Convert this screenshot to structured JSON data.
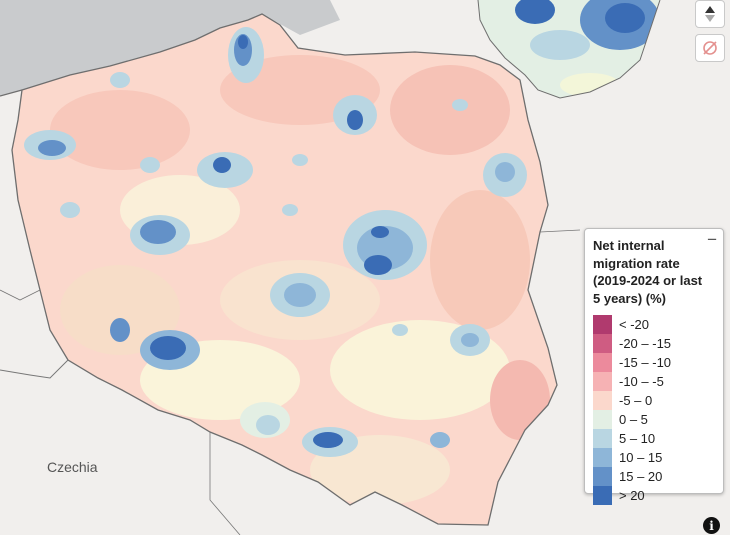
{
  "map": {
    "country_label": "Czechia",
    "colors": {
      "land": "#f1efed",
      "sea": "#c9cbcd",
      "border": "#6e6e6e"
    }
  },
  "legend": {
    "title": "Net internal migration rate (2019-2024 or last 5 years) (%)",
    "close_symbol": "−",
    "classes": [
      {
        "label": "< -20",
        "color": "#b03a6e"
      },
      {
        "label": "-20 – -15",
        "color": "#cf5c82"
      },
      {
        "label": "-15 – -10",
        "color": "#ec8a9c"
      },
      {
        "label": "-10 – -5",
        "color": "#f6b2b4"
      },
      {
        "label": "-5 – 0",
        "color": "#fbd8cc"
      },
      {
        "label": "0 – 5",
        "color": "#e3efe4"
      },
      {
        "label": "5 – 10",
        "color": "#b9d6e2"
      },
      {
        "label": "10 – 15",
        "color": "#8eb6d8"
      },
      {
        "label": "15 – 20",
        "color": "#6391c8"
      },
      {
        "label": "> 20",
        "color": "#3a6cb5"
      }
    ]
  },
  "controls": {
    "zoom_icon": "north-arrow-icon",
    "layers_icon": "hide-layer-icon",
    "info_symbol": "i"
  }
}
